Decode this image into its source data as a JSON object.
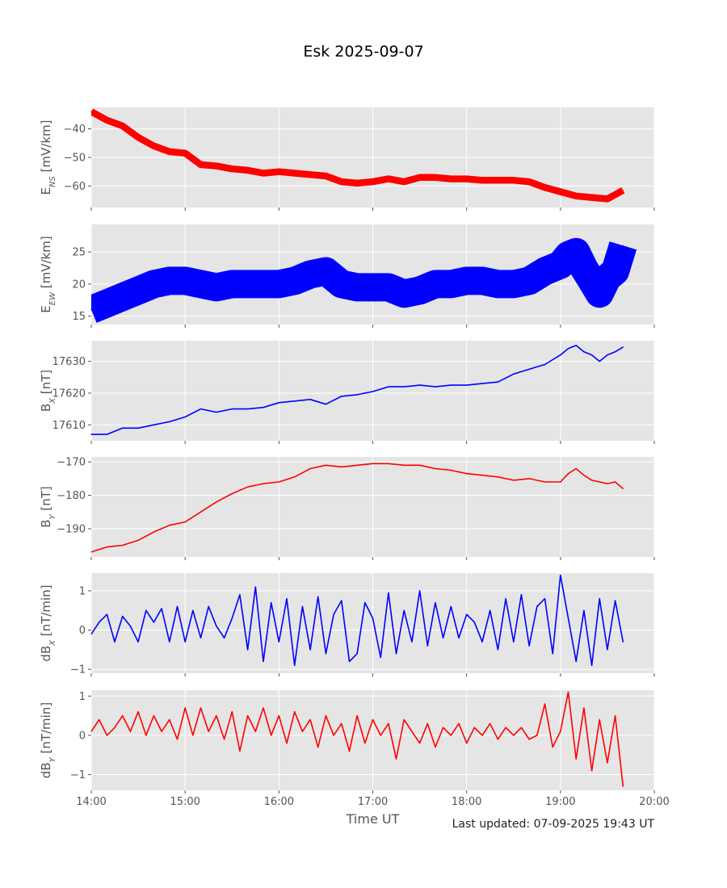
{
  "title": "Esk 2025-09-07",
  "xlabel": "Time UT",
  "footer": "Last updated: 07-09-2025 19:43 UT",
  "chart_data": [
    {
      "type": "line",
      "id": "ens",
      "ylabel_main": "E",
      "ylabel_sub": "NS",
      "ylabel_rest": " [mV/km]",
      "color": "#ff0000",
      "band": 1.2,
      "ylim": [
        -67.5,
        -32.5
      ],
      "yticks": [
        -40,
        -50,
        -60
      ],
      "ytick_labels": [
        "−40",
        "−50",
        "−60"
      ],
      "x": [
        "14:00",
        "14:10",
        "14:20",
        "14:30",
        "14:40",
        "14:50",
        "15:00",
        "15:10",
        "15:20",
        "15:30",
        "15:40",
        "15:50",
        "16:00",
        "16:10",
        "16:20",
        "16:30",
        "16:40",
        "16:50",
        "17:00",
        "17:10",
        "17:20",
        "17:30",
        "17:40",
        "17:50",
        "18:00",
        "18:10",
        "18:20",
        "18:30",
        "18:40",
        "18:50",
        "19:00",
        "19:10",
        "19:20",
        "19:30",
        "19:35",
        "19:40"
      ],
      "values": [
        -34,
        -37,
        -39,
        -43,
        -46,
        -48,
        -48.5,
        -52.5,
        -53,
        -54,
        -54.5,
        -55.5,
        -55,
        -55.5,
        -56,
        -56.5,
        -58.5,
        -59,
        -58.5,
        -57.5,
        -58.5,
        -57,
        -57,
        -57.5,
        -57.5,
        -58,
        -58,
        -58,
        -58.5,
        -60.5,
        -62,
        -63.5,
        -64,
        -64.5,
        -63,
        -61.5
      ]
    },
    {
      "type": "line",
      "id": "eew",
      "ylabel_main": "E",
      "ylabel_sub": "EW",
      "ylabel_rest": " [mV/km]",
      "color": "#0000ff",
      "band": 2.2,
      "ylim": [
        13.7,
        29.3
      ],
      "yticks": [
        15,
        20,
        25
      ],
      "ytick_labels": [
        "15",
        "20",
        "25"
      ],
      "x": [
        "14:00",
        "14:10",
        "14:20",
        "14:30",
        "14:40",
        "14:50",
        "15:00",
        "15:10",
        "15:20",
        "15:30",
        "15:40",
        "15:50",
        "16:00",
        "16:10",
        "16:20",
        "16:30",
        "16:40",
        "16:50",
        "17:00",
        "17:10",
        "17:20",
        "17:30",
        "17:40",
        "17:50",
        "18:00",
        "18:10",
        "18:20",
        "18:30",
        "18:40",
        "18:50",
        "19:00",
        "19:05",
        "19:10",
        "19:15",
        "19:20",
        "19:25",
        "19:30",
        "19:35",
        "19:40"
      ],
      "values": [
        16,
        17,
        18,
        19,
        20,
        20.5,
        20.5,
        20,
        19.5,
        20,
        20,
        20,
        20,
        20.5,
        21.5,
        22,
        20,
        19.5,
        19.5,
        19.5,
        18.5,
        19,
        20,
        20,
        20.5,
        20.5,
        20,
        20,
        20.5,
        22,
        23,
        24.5,
        25,
        22.5,
        20.5,
        18.5,
        21,
        22,
        26
      ]
    },
    {
      "type": "line",
      "id": "bx",
      "ylabel_main": "B",
      "ylabel_sub": "X",
      "ylabel_rest": " [nT]",
      "color": "#0000ff",
      "band": 0,
      "ylim": [
        17605,
        17636.5
      ],
      "yticks": [
        17610,
        17620,
        17630
      ],
      "ytick_labels": [
        "17610",
        "17620",
        "17630"
      ],
      "x": [
        "14:00",
        "14:10",
        "14:20",
        "14:30",
        "14:40",
        "14:50",
        "15:00",
        "15:10",
        "15:20",
        "15:30",
        "15:40",
        "15:50",
        "16:00",
        "16:10",
        "16:20",
        "16:30",
        "16:40",
        "16:50",
        "17:00",
        "17:10",
        "17:20",
        "17:30",
        "17:40",
        "17:50",
        "18:00",
        "18:10",
        "18:20",
        "18:30",
        "18:40",
        "18:50",
        "19:00",
        "19:05",
        "19:10",
        "19:15",
        "19:20",
        "19:25",
        "19:30",
        "19:35",
        "19:40"
      ],
      "values": [
        17607,
        17607,
        17609,
        17609,
        17610,
        17611,
        17612.5,
        17615,
        17614,
        17615,
        17615,
        17615.5,
        17617,
        17617.5,
        17618,
        17616.5,
        17619,
        17619.5,
        17620.5,
        17622,
        17622,
        17622.5,
        17622,
        17622.5,
        17622.5,
        17623,
        17623.5,
        17626,
        17627.5,
        17629,
        17632,
        17634,
        17635,
        17633,
        17632,
        17630,
        17632,
        17633,
        17634.5
      ]
    },
    {
      "type": "line",
      "id": "by",
      "ylabel_main": "B",
      "ylabel_sub": "Y",
      "ylabel_rest": " [nT]",
      "color": "#ff0000",
      "band": 0,
      "ylim": [
        -198.5,
        -168.5
      ],
      "yticks": [
        -170,
        -180,
        -190
      ],
      "ytick_labels": [
        "−170",
        "−180",
        "−190"
      ],
      "x": [
        "14:00",
        "14:10",
        "14:20",
        "14:30",
        "14:40",
        "14:50",
        "15:00",
        "15:10",
        "15:20",
        "15:30",
        "15:40",
        "15:50",
        "16:00",
        "16:10",
        "16:20",
        "16:30",
        "16:40",
        "16:50",
        "17:00",
        "17:10",
        "17:20",
        "17:30",
        "17:40",
        "17:50",
        "18:00",
        "18:10",
        "18:20",
        "18:30",
        "18:40",
        "18:50",
        "19:00",
        "19:05",
        "19:10",
        "19:15",
        "19:20",
        "19:25",
        "19:30",
        "19:35",
        "19:40"
      ],
      "values": [
        -197,
        -195.5,
        -195,
        -193.5,
        -191,
        -189,
        -188,
        -185,
        -182,
        -179.5,
        -177.5,
        -176.5,
        -176,
        -174.5,
        -172,
        -171,
        -171.5,
        -171,
        -170.5,
        -170.5,
        -171,
        -171,
        -172,
        -172.5,
        -173.5,
        -174,
        -174.5,
        -175.5,
        -175,
        -176,
        -176,
        -173.5,
        -172,
        -174,
        -175.5,
        -176,
        -176.5,
        -176,
        -178
      ]
    },
    {
      "type": "line",
      "id": "dbx",
      "ylabel_main": "dB",
      "ylabel_sub": "X",
      "ylabel_rest": " [nT/min]",
      "color": "#0000ff",
      "band": 0,
      "ylim": [
        -1.1,
        1.45
      ],
      "yticks": [
        1,
        0,
        -1
      ],
      "ytick_labels": [
        "1",
        "0",
        "−1"
      ],
      "x": [
        "14:00",
        "14:05",
        "14:10",
        "14:15",
        "14:20",
        "14:25",
        "14:30",
        "14:35",
        "14:40",
        "14:45",
        "14:50",
        "14:55",
        "15:00",
        "15:05",
        "15:10",
        "15:15",
        "15:20",
        "15:25",
        "15:30",
        "15:35",
        "15:40",
        "15:45",
        "15:50",
        "15:55",
        "16:00",
        "16:05",
        "16:10",
        "16:15",
        "16:20",
        "16:25",
        "16:30",
        "16:35",
        "16:40",
        "16:45",
        "16:50",
        "16:55",
        "17:00",
        "17:05",
        "17:10",
        "17:15",
        "17:20",
        "17:25",
        "17:30",
        "17:35",
        "17:40",
        "17:45",
        "17:50",
        "17:55",
        "18:00",
        "18:05",
        "18:10",
        "18:15",
        "18:20",
        "18:25",
        "18:30",
        "18:35",
        "18:40",
        "18:45",
        "18:50",
        "18:55",
        "19:00",
        "19:05",
        "19:10",
        "19:15",
        "19:20",
        "19:25",
        "19:30",
        "19:35",
        "19:40"
      ],
      "values": [
        -0.1,
        0.2,
        0.4,
        -0.3,
        0.35,
        0.1,
        -0.3,
        0.5,
        0.2,
        0.55,
        -0.3,
        0.6,
        -0.3,
        0.5,
        -0.2,
        0.6,
        0.1,
        -0.2,
        0.3,
        0.9,
        -0.5,
        1.1,
        -0.8,
        0.7,
        -0.3,
        0.8,
        -0.9,
        0.6,
        -0.5,
        0.85,
        -0.6,
        0.4,
        0.75,
        -0.8,
        -0.6,
        0.7,
        0.3,
        -0.7,
        0.95,
        -0.6,
        0.5,
        -0.3,
        1.0,
        -0.4,
        0.7,
        -0.2,
        0.6,
        -0.2,
        0.4,
        0.2,
        -0.3,
        0.5,
        -0.5,
        0.8,
        -0.3,
        0.9,
        -0.4,
        0.6,
        0.8,
        -0.6,
        1.4,
        0.3,
        -0.8,
        0.5,
        -0.9,
        0.8,
        -0.5,
        0.75,
        -0.3
      ]
    },
    {
      "type": "line",
      "id": "dby",
      "ylabel_main": "dB",
      "ylabel_sub": "Y",
      "ylabel_rest": " [nT/min]",
      "color": "#ff0000",
      "band": 0,
      "ylim": [
        -1.4,
        1.15
      ],
      "yticks": [
        1,
        0,
        -1
      ],
      "ytick_labels": [
        "1",
        "0",
        "−1"
      ],
      "x": [
        "14:00",
        "14:05",
        "14:10",
        "14:15",
        "14:20",
        "14:25",
        "14:30",
        "14:35",
        "14:40",
        "14:45",
        "14:50",
        "14:55",
        "15:00",
        "15:05",
        "15:10",
        "15:15",
        "15:20",
        "15:25",
        "15:30",
        "15:35",
        "15:40",
        "15:45",
        "15:50",
        "15:55",
        "16:00",
        "16:05",
        "16:10",
        "16:15",
        "16:20",
        "16:25",
        "16:30",
        "16:35",
        "16:40",
        "16:45",
        "16:50",
        "16:55",
        "17:00",
        "17:05",
        "17:10",
        "17:15",
        "17:20",
        "17:25",
        "17:30",
        "17:35",
        "17:40",
        "17:45",
        "17:50",
        "17:55",
        "18:00",
        "18:05",
        "18:10",
        "18:15",
        "18:20",
        "18:25",
        "18:30",
        "18:35",
        "18:40",
        "18:45",
        "18:50",
        "18:55",
        "19:00",
        "19:05",
        "19:10",
        "19:15",
        "19:20",
        "19:25",
        "19:30",
        "19:35",
        "19:40"
      ],
      "values": [
        0.1,
        0.4,
        0.0,
        0.2,
        0.5,
        0.1,
        0.6,
        0.0,
        0.5,
        0.1,
        0.4,
        -0.1,
        0.7,
        0.0,
        0.7,
        0.1,
        0.5,
        -0.1,
        0.6,
        -0.4,
        0.5,
        0.1,
        0.7,
        0.0,
        0.5,
        -0.2,
        0.6,
        0.1,
        0.4,
        -0.3,
        0.5,
        0.0,
        0.3,
        -0.4,
        0.5,
        -0.2,
        0.4,
        0.0,
        0.3,
        -0.6,
        0.4,
        0.1,
        -0.2,
        0.3,
        -0.3,
        0.2,
        0.0,
        0.3,
        -0.2,
        0.2,
        0.0,
        0.3,
        -0.1,
        0.2,
        0.0,
        0.2,
        -0.1,
        0.0,
        0.8,
        -0.3,
        0.1,
        1.1,
        -0.6,
        0.7,
        -0.9,
        0.4,
        -0.7,
        0.5,
        -1.3
      ]
    }
  ],
  "x_axis": {
    "range": [
      "14:00",
      "20:00"
    ],
    "ticks": [
      "14:00",
      "15:00",
      "16:00",
      "17:00",
      "18:00",
      "19:00",
      "20:00"
    ]
  }
}
